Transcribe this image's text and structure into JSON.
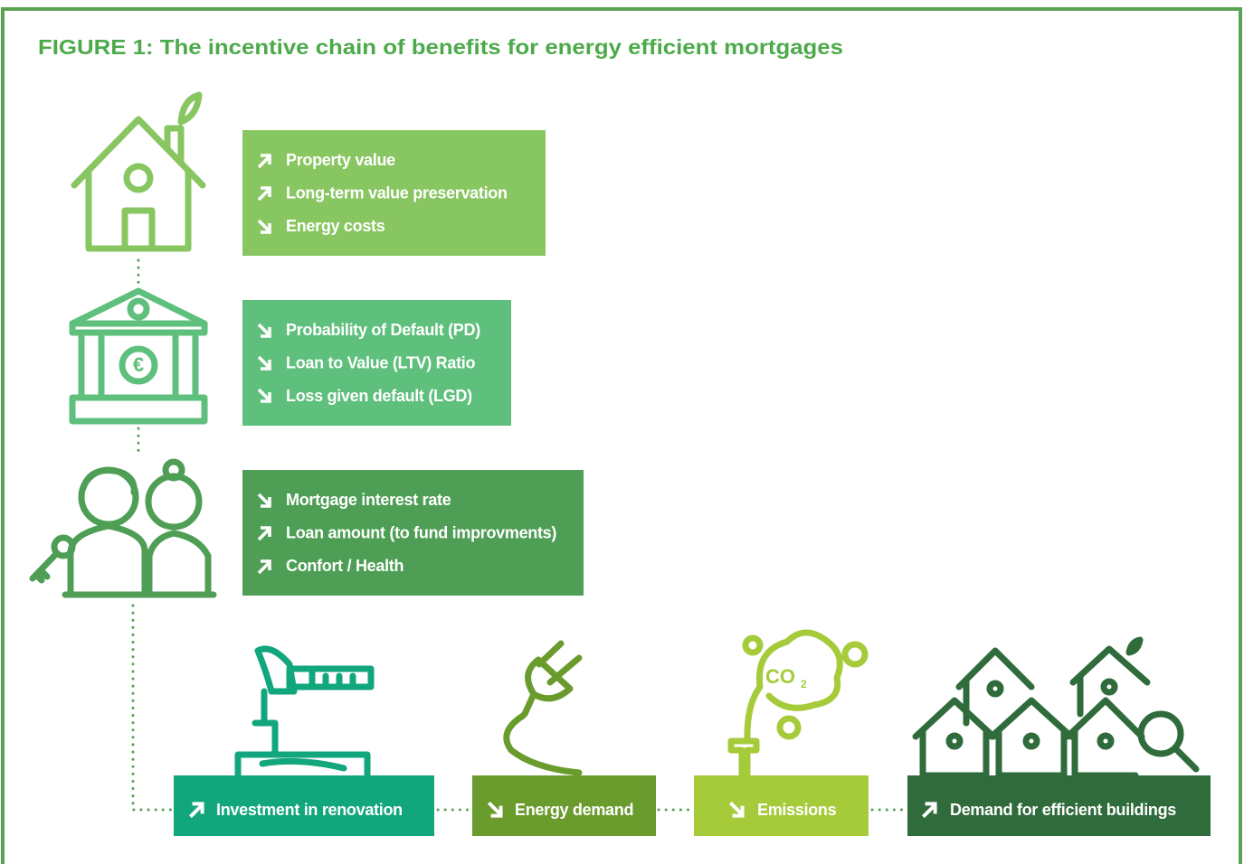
{
  "header": {
    "title": "FIGURE 1: The incentive chain of benefits for energy efficient mortgages"
  },
  "boxes": [
    {
      "items": [
        "Property value",
        "Long-term value preservation",
        "Energy costs"
      ]
    },
    {
      "items": [
        "Probability of Default (PD)",
        "Loan to Value (LTV) Ratio",
        "Loss given default (LGD)"
      ]
    },
    {
      "items": [
        "Mortgage interest rate",
        "Loan amount (to fund improvments)",
        "Confort / Health"
      ]
    }
  ],
  "chain": [
    {
      "label": "Investment in renovation"
    },
    {
      "label": "Energy demand"
    },
    {
      "label": "Emissions"
    },
    {
      "label": "Demand for efficient buildings"
    }
  ],
  "icons": {
    "co2": "CO"
  }
}
